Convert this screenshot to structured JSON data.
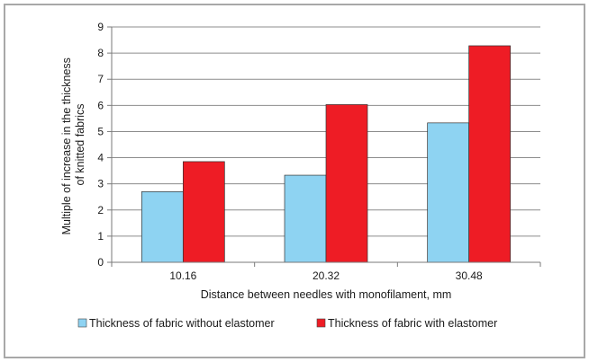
{
  "chart_data": {
    "type": "bar",
    "title": "",
    "xlabel": "Distance between needles with monofilament, mm",
    "ylabel_lines": [
      "Multiple of increase in the thickness",
      "of knitted fabrics"
    ],
    "categories": [
      "10.16",
      "20.32",
      "30.48"
    ],
    "ylim": [
      0,
      9
    ],
    "yticks": [
      "0",
      "1",
      "2",
      "3",
      "4",
      "5",
      "6",
      "7",
      "8",
      "9"
    ],
    "grid": true,
    "legend_position": "bottom",
    "series": [
      {
        "name": "Thickness of fabric without elastomer",
        "color": "#8ed3f2",
        "values": [
          2.7,
          3.33,
          5.33
        ]
      },
      {
        "name": "Thickness of fabric with elastomer",
        "color": "#ee1c25",
        "values": [
          3.85,
          6.03,
          8.28
        ]
      }
    ]
  }
}
